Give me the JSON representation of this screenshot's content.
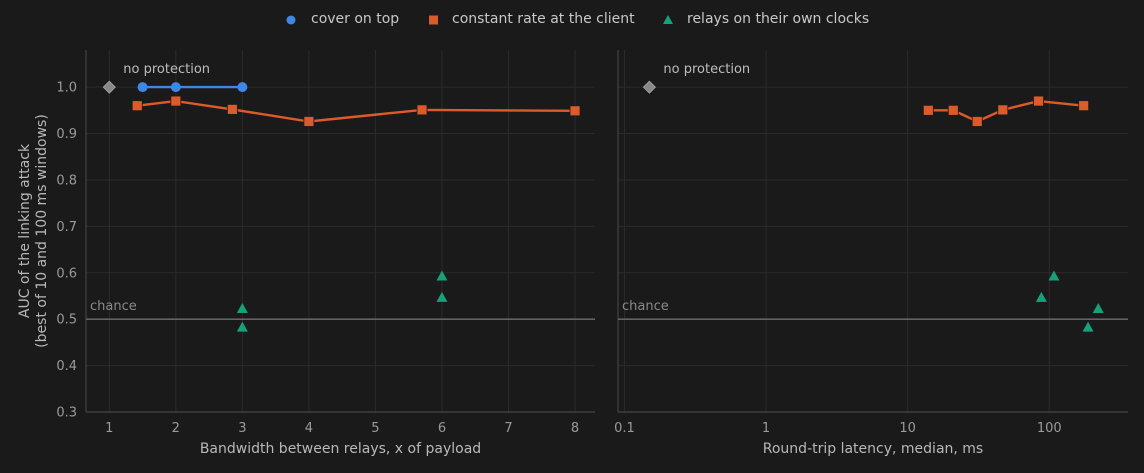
{
  "legend": [
    {
      "name": "cover on top",
      "color": "#3f87e6",
      "marker": "circle"
    },
    {
      "name": "constant rate at the client",
      "color": "#dd5a2b",
      "marker": "square"
    },
    {
      "name": "relays on their own clocks",
      "color": "#16a17a",
      "marker": "triangle"
    }
  ],
  "annotations": {
    "no_protection": "no protection",
    "chance": "chance"
  },
  "chart_data": [
    {
      "type": "line",
      "xlabel": "Bandwidth between relays, x of payload",
      "ylabel": "AUC of the linking attack\n(best of 10 and 100 ms windows)",
      "xlim": [
        0.65,
        8.3
      ],
      "ylim": [
        0.3,
        1.08
      ],
      "x_scale": "linear",
      "xticks": [
        "1",
        "2",
        "3",
        "4",
        "5",
        "6",
        "7",
        "8"
      ],
      "yticks": [
        "0.3",
        "0.4",
        "0.5",
        "0.6",
        "0.7",
        "0.8",
        "0.9",
        "1.0"
      ],
      "grid": true,
      "chance_level": 0.5,
      "no_protection": {
        "x": 1.0,
        "y": 1.0,
        "color": "#888888"
      },
      "series": [
        {
          "name": "cover on top",
          "color": "#3f87e6",
          "marker": "circle",
          "connected": true,
          "points": [
            [
              1.5,
              1.0
            ],
            [
              2.0,
              1.0
            ],
            [
              3.0,
              1.0
            ]
          ]
        },
        {
          "name": "constant rate at the client",
          "color": "#dd5a2b",
          "marker": "square",
          "connected": true,
          "points": [
            [
              1.42,
              0.96
            ],
            [
              2.0,
              0.97
            ],
            [
              2.85,
              0.952
            ],
            [
              4.0,
              0.926
            ],
            [
              5.7,
              0.951
            ],
            [
              8.0,
              0.949
            ]
          ]
        },
        {
          "name": "relays on their own clocks",
          "color": "#16a17a",
          "marker": "triangle",
          "connected": false,
          "points": [
            [
              3.0,
              0.523
            ],
            [
              3.0,
              0.483
            ],
            [
              6.0,
              0.593
            ],
            [
              6.0,
              0.547
            ]
          ]
        }
      ]
    },
    {
      "type": "line",
      "xlabel": "Round-trip latency, median, ms",
      "ylabel": "",
      "xlim": [
        0.09,
        360
      ],
      "ylim": [
        0.3,
        1.08
      ],
      "x_scale": "log",
      "xticks": [
        "0.1",
        "1",
        "10",
        "100"
      ],
      "grid": true,
      "chance_level": 0.5,
      "no_protection": {
        "x": 0.15,
        "y": 1.0,
        "color": "#888888"
      },
      "series": [
        {
          "name": "constant rate at the client",
          "color": "#dd5a2b",
          "marker": "square",
          "connected": true,
          "points": [
            [
              14,
              0.95
            ],
            [
              21,
              0.95
            ],
            [
              31,
              0.926
            ],
            [
              47,
              0.951
            ],
            [
              84,
              0.97
            ],
            [
              175,
              0.96
            ]
          ]
        },
        {
          "name": "relays on their own clocks",
          "color": "#16a17a",
          "marker": "triangle",
          "connected": false,
          "points": [
            [
              88,
              0.547
            ],
            [
              108,
              0.593
            ],
            [
              188,
              0.483
            ],
            [
              222,
              0.523
            ]
          ]
        }
      ]
    }
  ]
}
